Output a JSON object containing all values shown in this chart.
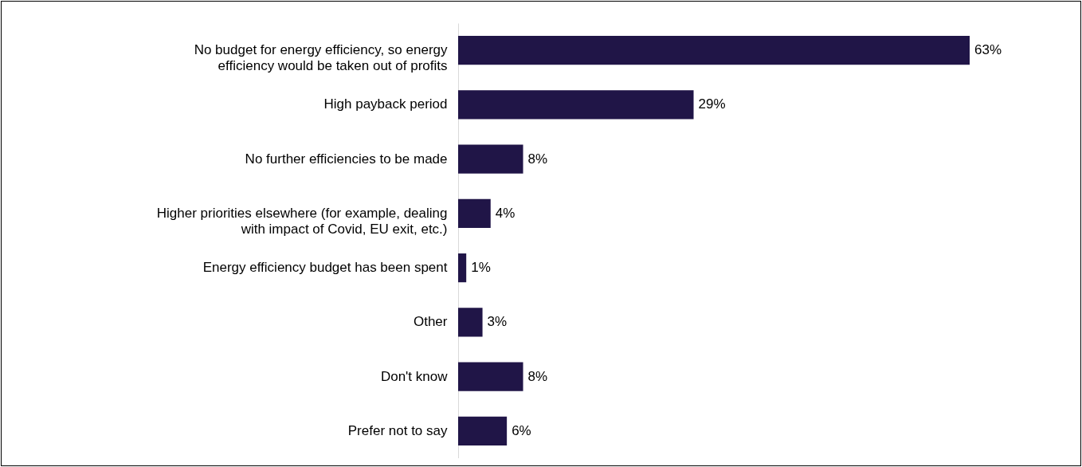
{
  "chart_data": {
    "type": "bar",
    "orientation": "horizontal",
    "categories": [
      "No budget for energy efficiency, so energy efficiency would be taken out of profits",
      "High payback period",
      "No further efficiencies to be made",
      "Higher priorities elsewhere (for example, dealing with impact of Covid, EU exit, etc.)",
      "Energy efficiency budget has been spent",
      "Other",
      "Don't know",
      "Prefer not to say"
    ],
    "values": [
      63,
      29,
      8,
      4,
      1,
      3,
      8,
      6
    ],
    "value_labels": [
      "63%",
      "29%",
      "8%",
      "4%",
      "1%",
      "3%",
      "8%",
      "6%"
    ],
    "color": "#201547"
  }
}
